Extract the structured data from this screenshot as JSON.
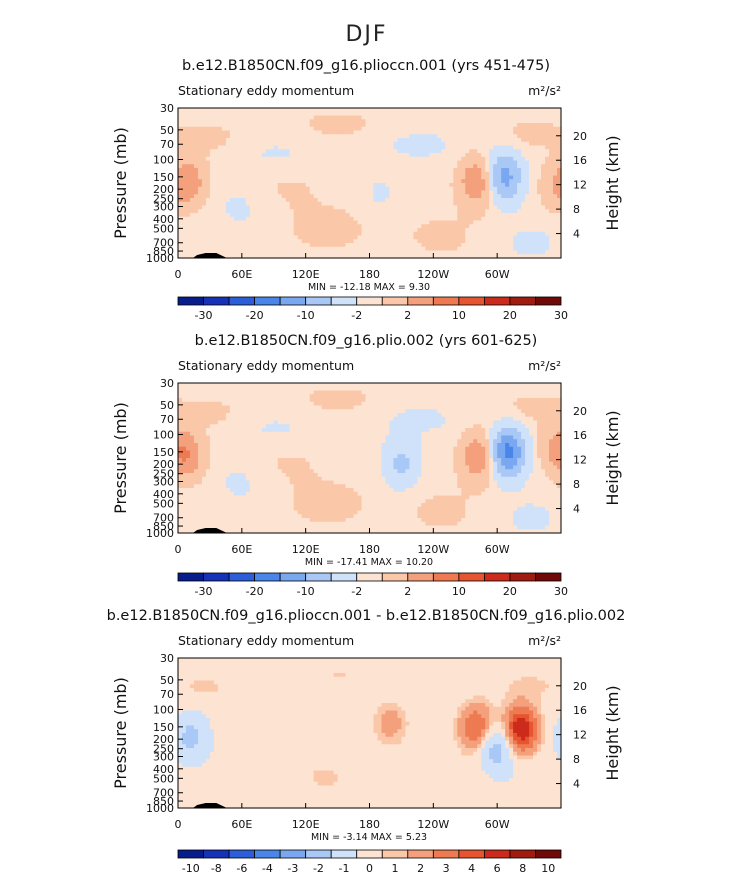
{
  "figure": {
    "title": "DJF"
  },
  "chart_data": [
    {
      "type": "heatmap",
      "title": "b.e12.B1850CN.f09_g16.plioccn.001 (yrs 451-475)",
      "left_label": "Stationary eddy momentum",
      "units": "m²/s²",
      "ylabel": "Pressure (mb)",
      "y2label": "Height (km)",
      "x_ticks": [
        "0",
        "60E",
        "120E",
        "180",
        "120W",
        "60W"
      ],
      "y_ticks": [
        "30",
        "50",
        "70",
        "100",
        "150",
        "200",
        "250",
        "300",
        "400",
        "500",
        "700",
        "850",
        "1000"
      ],
      "y2_ticks": [
        "20",
        "16",
        "12",
        "8",
        "4"
      ],
      "stats": "MIN = -12.18   MAX =   9.30",
      "min": -12.18,
      "max": 9.3,
      "colorbar_labels": [
        "-30",
        "-20",
        "-10",
        "-2",
        "2",
        "10",
        "20",
        "30"
      ],
      "features": [
        {
          "lon": 10,
          "p": 170,
          "value": 8
        },
        {
          "lon": 280,
          "p": 170,
          "value": 9
        },
        {
          "lon": 307,
          "p": 150,
          "value": -12
        },
        {
          "lon": 355,
          "p": 190,
          "value": 3
        },
        {
          "lon": 190,
          "p": 230,
          "value": -1.5
        }
      ]
    },
    {
      "type": "heatmap",
      "title": "b.e12.B1850CN.f09_g16.plio.002 (yrs 601-625)",
      "left_label": "Stationary eddy momentum",
      "units": "m²/s²",
      "ylabel": "Pressure (mb)",
      "y2label": "Height (km)",
      "x_ticks": [
        "0",
        "60E",
        "120E",
        "180",
        "120W",
        "60W"
      ],
      "y_ticks": [
        "30",
        "50",
        "70",
        "100",
        "150",
        "200",
        "250",
        "300",
        "400",
        "500",
        "700",
        "850",
        "1000"
      ],
      "y2_ticks": [
        "20",
        "16",
        "12",
        "8",
        "4"
      ],
      "stats": "MIN = -17.41   MAX =  10.20",
      "min": -17.41,
      "max": 10.2,
      "colorbar_labels": [
        "-30",
        "-20",
        "-10",
        "-2",
        "2",
        "10",
        "20",
        "30"
      ],
      "features": [
        {
          "lon": 8,
          "p": 165,
          "value": 9
        },
        {
          "lon": 282,
          "p": 170,
          "value": 9
        },
        {
          "lon": 310,
          "p": 150,
          "value": -17
        },
        {
          "lon": 210,
          "p": 200,
          "value": -6
        },
        {
          "lon": 355,
          "p": 130,
          "value": 4
        }
      ]
    },
    {
      "type": "heatmap",
      "title": "b.e12.B1850CN.f09_g16.plioccn.001 - b.e12.B1850CN.f09_g16.plio.002",
      "left_label": "Stationary eddy momentum",
      "units": "m²/s²",
      "ylabel": "Pressure (mb)",
      "y2label": "Height (km)",
      "x_ticks": [
        "0",
        "60E",
        "120E",
        "180",
        "120W",
        "60W"
      ],
      "y_ticks": [
        "30",
        "50",
        "70",
        "100",
        "150",
        "200",
        "250",
        "300",
        "400",
        "500",
        "700",
        "850",
        "1000"
      ],
      "y2_ticks": [
        "20",
        "16",
        "12",
        "8",
        "4"
      ],
      "stats": "MIN =  -3.14   MAX =   5.23",
      "min": -3.14,
      "max": 5.23,
      "colorbar_labels": [
        "-10",
        "-8",
        "-6",
        "-4",
        "-3",
        "-2",
        "-1",
        "0",
        "1",
        "2",
        "3",
        "4",
        "6",
        "8",
        "10"
      ],
      "features": [
        {
          "lon": 12,
          "p": 190,
          "value": -2.5
        },
        {
          "lon": 280,
          "p": 150,
          "value": 3.2
        },
        {
          "lon": 300,
          "p": 250,
          "value": -3.1
        },
        {
          "lon": 322,
          "p": 160,
          "value": 5.2
        },
        {
          "lon": 200,
          "p": 130,
          "value": 1.5
        }
      ]
    }
  ],
  "colors": {
    "diverging": [
      "#081d8c",
      "#1632b8",
      "#2b5ed8",
      "#4a86ea",
      "#7aa8f0",
      "#a9c8f5",
      "#cfe2fa",
      "#fde4d2",
      "#fbc7a9",
      "#f4a07d",
      "#ee7a52",
      "#e65430",
      "#cc2a1a",
      "#a01b10",
      "#700a08"
    ]
  }
}
